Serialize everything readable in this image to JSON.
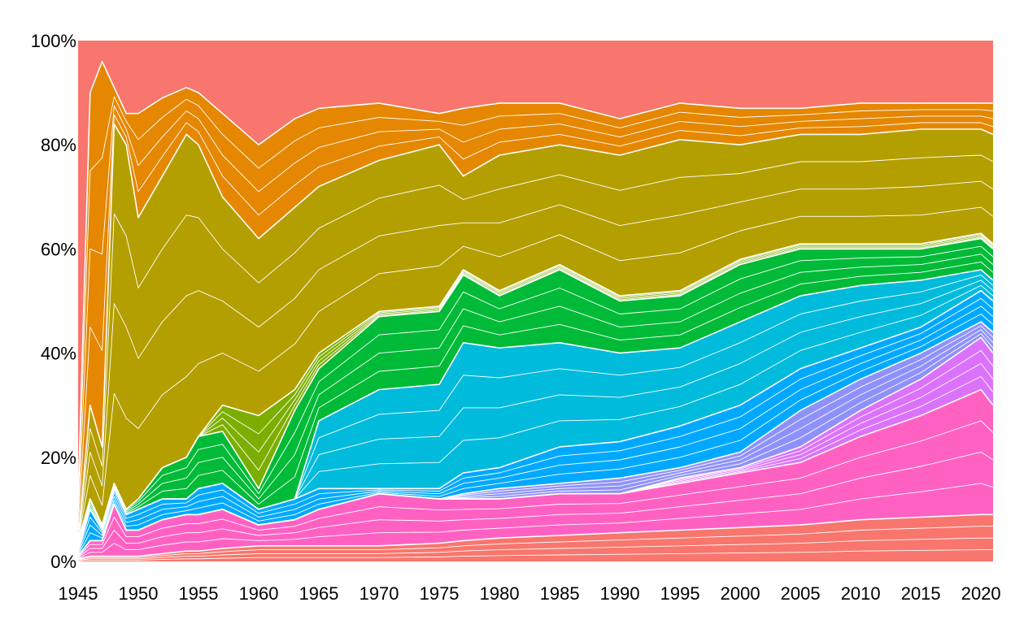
{
  "chart_data": {
    "type": "area",
    "stacking": "percent",
    "title": "",
    "xlabel": "",
    "ylabel": "",
    "xlim": [
      1945,
      2021
    ],
    "ylim": [
      0,
      100
    ],
    "x_ticks": [
      1945,
      1950,
      1955,
      1960,
      1965,
      1970,
      1975,
      1980,
      1985,
      1990,
      1995,
      2000,
      2005,
      2010,
      2015,
      2020
    ],
    "x_tick_labels": [
      "1945",
      "1950",
      "1955",
      "1960",
      "1965",
      "1970",
      "1975",
      "1980",
      "1985",
      "1990",
      "1995",
      "2000",
      "2005",
      "2010",
      "2015",
      "2020"
    ],
    "y_ticks": [
      0,
      20,
      40,
      60,
      80,
      100
    ],
    "y_tick_labels": [
      "0%",
      "20%",
      "40%",
      "60%",
      "80%",
      "100%"
    ],
    "grid": false,
    "legend": "none",
    "x": [
      1945,
      1946,
      1947,
      1948,
      1949,
      1950,
      1952,
      1954,
      1955,
      1957,
      1960,
      1963,
      1965,
      1970,
      1975,
      1977,
      1980,
      1985,
      1990,
      1995,
      2000,
      2005,
      2010,
      2015,
      2020,
      2021
    ],
    "series_note": "Percent-stacked area composed of many thin bands (white boundaries); values below are estimated cumulative group boundaries (%) from bottom to top.",
    "series": [
      {
        "name": "red-base",
        "color": "#f8766d",
        "values": [
          0.5,
          1,
          1,
          1,
          1,
          1,
          1.5,
          2,
          2,
          2.5,
          3,
          3,
          3,
          3,
          3.5,
          4,
          4.5,
          5,
          5.5,
          6,
          6.5,
          7,
          8,
          8.5,
          9,
          9
        ]
      },
      {
        "name": "pink",
        "color": "#ff61c3",
        "values": [
          1,
          4,
          4,
          11,
          6,
          6,
          8,
          9,
          9,
          10,
          7,
          8,
          10,
          13,
          12,
          12,
          12,
          13,
          13,
          15,
          17,
          19,
          24,
          28,
          33,
          30
        ]
      },
      {
        "name": "violet",
        "color": "#db72fb",
        "values": [
          1,
          4,
          4,
          11,
          6,
          6,
          8,
          9,
          9,
          10,
          7,
          8,
          10,
          13,
          12,
          12,
          12,
          13,
          13,
          16,
          18,
          22,
          29,
          35,
          43,
          40
        ]
      },
      {
        "name": "periwinkle",
        "color": "#8f91fb",
        "values": [
          1,
          4,
          4,
          11,
          6,
          6,
          8,
          9,
          9,
          10,
          7,
          8,
          10,
          13,
          12,
          13,
          14,
          15,
          16,
          18,
          21,
          29,
          35,
          40,
          46,
          44
        ]
      },
      {
        "name": "blue",
        "color": "#00a9ff",
        "values": [
          2,
          10,
          6,
          14,
          9,
          10,
          12,
          12,
          14,
          15,
          10,
          12,
          14,
          14,
          14,
          17,
          18,
          22,
          23,
          26,
          30,
          37,
          41,
          45,
          52,
          50
        ]
      },
      {
        "name": "cyan",
        "color": "#00bbdc",
        "values": [
          2,
          10,
          6,
          14,
          9,
          10,
          12,
          12,
          14,
          15,
          10,
          12,
          27,
          33,
          34,
          42,
          41,
          42,
          40,
          41,
          46,
          51,
          53,
          54,
          56,
          54
        ]
      },
      {
        "name": "green",
        "color": "#00ba38",
        "values": [
          3,
          12,
          7,
          15,
          10,
          12,
          18,
          20,
          24,
          25,
          14,
          29,
          37,
          47,
          48,
          55,
          51,
          56,
          50,
          51,
          57,
          60,
          60,
          60,
          62,
          60
        ]
      },
      {
        "name": "olive",
        "color": "#7cae00",
        "values": [
          4,
          12,
          7,
          15,
          10,
          12,
          18,
          20,
          24,
          30,
          28,
          33,
          40,
          48,
          49,
          56,
          52,
          57,
          51,
          52,
          58,
          61,
          61,
          61,
          63,
          61
        ]
      },
      {
        "name": "mustard",
        "color": "#b49f00",
        "values": [
          4,
          30,
          22,
          84,
          80,
          66,
          74,
          82,
          80,
          70,
          62,
          68,
          72,
          77,
          80,
          74,
          78,
          80,
          78,
          81,
          80,
          82,
          82,
          83,
          83,
          82
        ]
      },
      {
        "name": "orange",
        "color": "#e58700",
        "values": [
          12,
          90,
          96,
          91,
          86,
          86,
          89,
          91,
          90,
          86,
          80,
          85,
          87,
          88,
          86,
          87,
          88,
          88,
          85,
          88,
          87,
          87,
          88,
          88,
          88,
          88
        ]
      },
      {
        "name": "salmon-top",
        "color": "#f8766d",
        "values": [
          100,
          100,
          100,
          100,
          100,
          100,
          100,
          100,
          100,
          100,
          100,
          100,
          100,
          100,
          100,
          100,
          100,
          100,
          100,
          100,
          100,
          100,
          100,
          100,
          100,
          100
        ]
      }
    ]
  }
}
